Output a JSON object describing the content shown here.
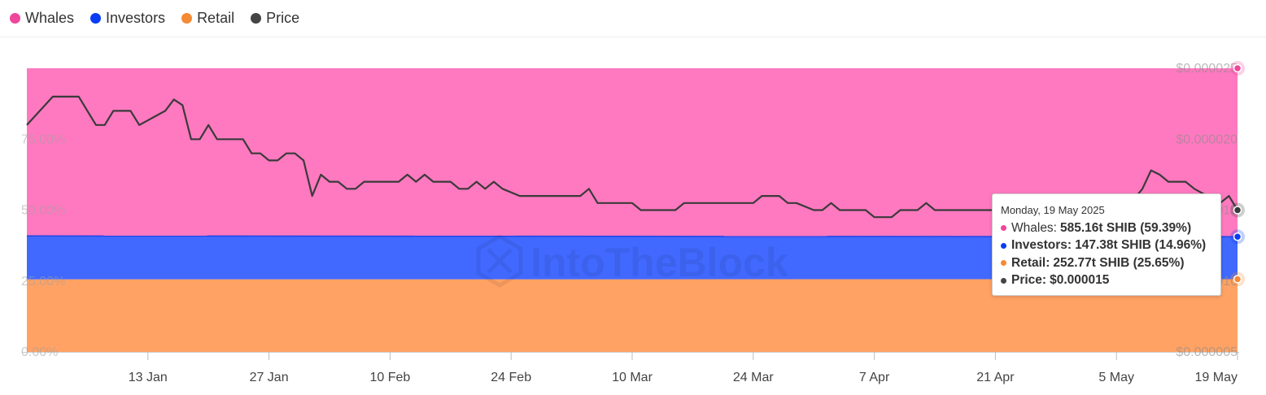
{
  "legend": [
    {
      "name": "Whales",
      "color": "#f0469b"
    },
    {
      "name": "Investors",
      "color": "#0a3cf5"
    },
    {
      "name": "Retail",
      "color": "#f58a35"
    },
    {
      "name": "Price",
      "color": "#444444"
    }
  ],
  "watermark": "IntoTheBlock",
  "tooltip": {
    "date": "Monday, 19 May 2025",
    "rows": [
      {
        "label": "Whales:",
        "value": "585.16t SHIB (59.39%)",
        "color": "#f0469b"
      },
      {
        "label": "Investors:",
        "value": "147.38t SHIB (14.96%)",
        "color": "#0a3cf5"
      },
      {
        "label": "Retail:",
        "value": "252.77t SHIB (25.65%)",
        "color": "#f58a35"
      },
      {
        "label": "Price:",
        "value": "$0.000015",
        "color": "#444444"
      }
    ]
  },
  "chart_data": {
    "type": "area",
    "stacked": "percent",
    "x_range": [
      "2024-12-30",
      "2025-05-19"
    ],
    "x_ticks": [
      "13 Jan",
      "27 Jan",
      "10 Feb",
      "24 Feb",
      "10 Mar",
      "24 Mar",
      "7 Apr",
      "21 Apr",
      "5 May",
      "19 May"
    ],
    "left_axis": {
      "ticks": [
        "0.00%",
        "25.00%",
        "50.00%",
        "75.00%"
      ],
      "range": [
        0,
        100
      ]
    },
    "right_axis": {
      "ticks": [
        "$0.000005",
        "$0.000010",
        "$0.000015",
        "$0.000020",
        "$0.000025"
      ],
      "range": [
        5e-06,
        2.5e-05
      ]
    },
    "colors": {
      "Whales": "#ff79c0",
      "Investors": "#4169ff",
      "Retail": "#ffa264",
      "Price": "#3a3a3a"
    },
    "series": [
      {
        "name": "Retail",
        "unit": "percent",
        "start": 25.6,
        "end": 25.65
      },
      {
        "name": "Investors",
        "unit": "percent",
        "start": 15.3,
        "end": 14.96
      },
      {
        "name": "Whales",
        "unit": "percent",
        "start": 59.1,
        "end": 59.39
      },
      {
        "name": "Price",
        "unit": "USD",
        "values": [
          [
            "2024-12-30",
            2.1e-05
          ],
          [
            "2025-01-02",
            2.3e-05
          ],
          [
            "2025-01-05",
            2.3e-05
          ],
          [
            "2025-01-06",
            2.2e-05
          ],
          [
            "2025-01-07",
            2.1e-05
          ],
          [
            "2025-01-08",
            2.1e-05
          ],
          [
            "2025-01-09",
            2.2e-05
          ],
          [
            "2025-01-11",
            2.2e-05
          ],
          [
            "2025-01-12",
            2.1e-05
          ],
          [
            "2025-01-15",
            2.2e-05
          ],
          [
            "2025-01-16",
            2.28e-05
          ],
          [
            "2025-01-17",
            2.24e-05
          ],
          [
            "2025-01-18",
            2e-05
          ],
          [
            "2025-01-19",
            2e-05
          ],
          [
            "2025-01-20",
            2.1e-05
          ],
          [
            "2025-01-21",
            2e-05
          ],
          [
            "2025-01-24",
            2e-05
          ],
          [
            "2025-01-25",
            1.9e-05
          ],
          [
            "2025-01-26",
            1.9e-05
          ],
          [
            "2025-01-27",
            1.85e-05
          ],
          [
            "2025-01-28",
            1.85e-05
          ],
          [
            "2025-01-29",
            1.9e-05
          ],
          [
            "2025-01-30",
            1.9e-05
          ],
          [
            "2025-01-31",
            1.85e-05
          ],
          [
            "2025-02-01",
            1.6e-05
          ],
          [
            "2025-02-02",
            1.75e-05
          ],
          [
            "2025-02-03",
            1.7e-05
          ],
          [
            "2025-02-04",
            1.7e-05
          ],
          [
            "2025-02-05",
            1.65e-05
          ],
          [
            "2025-02-06",
            1.65e-05
          ],
          [
            "2025-02-07",
            1.7e-05
          ],
          [
            "2025-02-09",
            1.7e-05
          ],
          [
            "2025-02-11",
            1.7e-05
          ],
          [
            "2025-02-12",
            1.75e-05
          ],
          [
            "2025-02-13",
            1.7e-05
          ],
          [
            "2025-02-14",
            1.75e-05
          ],
          [
            "2025-02-15",
            1.7e-05
          ],
          [
            "2025-02-17",
            1.7e-05
          ],
          [
            "2025-02-18",
            1.65e-05
          ],
          [
            "2025-02-19",
            1.65e-05
          ],
          [
            "2025-02-20",
            1.7e-05
          ],
          [
            "2025-02-21",
            1.65e-05
          ],
          [
            "2025-02-22",
            1.7e-05
          ],
          [
            "2025-02-23",
            1.65e-05
          ],
          [
            "2025-02-25",
            1.6e-05
          ],
          [
            "2025-03-01",
            1.6e-05
          ],
          [
            "2025-03-04",
            1.6e-05
          ],
          [
            "2025-03-05",
            1.65e-05
          ],
          [
            "2025-03-06",
            1.55e-05
          ],
          [
            "2025-03-08",
            1.55e-05
          ],
          [
            "2025-03-10",
            1.55e-05
          ],
          [
            "2025-03-11",
            1.5e-05
          ],
          [
            "2025-03-15",
            1.5e-05
          ],
          [
            "2025-03-16",
            1.55e-05
          ],
          [
            "2025-03-24",
            1.55e-05
          ],
          [
            "2025-03-25",
            1.6e-05
          ],
          [
            "2025-03-27",
            1.6e-05
          ],
          [
            "2025-03-28",
            1.55e-05
          ],
          [
            "2025-03-29",
            1.55e-05
          ],
          [
            "2025-03-31",
            1.5e-05
          ],
          [
            "2025-04-01",
            1.5e-05
          ],
          [
            "2025-04-02",
            1.55e-05
          ],
          [
            "2025-04-03",
            1.5e-05
          ],
          [
            "2025-04-06",
            1.5e-05
          ],
          [
            "2025-04-07",
            1.45e-05
          ],
          [
            "2025-04-09",
            1.45e-05
          ],
          [
            "2025-04-10",
            1.5e-05
          ],
          [
            "2025-04-12",
            1.5e-05
          ],
          [
            "2025-04-13",
            1.55e-05
          ],
          [
            "2025-04-14",
            1.5e-05
          ],
          [
            "2025-04-28",
            1.5e-05
          ],
          [
            "2025-04-29",
            1.55e-05
          ],
          [
            "2025-04-30",
            1.6e-05
          ],
          [
            "2025-05-01",
            1.6e-05
          ],
          [
            "2025-05-02",
            1.55e-05
          ],
          [
            "2025-05-03",
            1.55e-05
          ],
          [
            "2025-05-04",
            1.5e-05
          ],
          [
            "2025-05-05",
            1.5e-05
          ],
          [
            "2025-05-06",
            1.5e-05
          ],
          [
            "2025-05-08",
            1.65e-05
          ],
          [
            "2025-05-09",
            1.78e-05
          ],
          [
            "2025-05-10",
            1.75e-05
          ],
          [
            "2025-05-11",
            1.7e-05
          ],
          [
            "2025-05-13",
            1.7e-05
          ],
          [
            "2025-05-14",
            1.65e-05
          ],
          [
            "2025-05-17",
            1.55e-05
          ],
          [
            "2025-05-18",
            1.6e-05
          ],
          [
            "2025-05-19",
            1.5e-05
          ]
        ]
      }
    ]
  }
}
